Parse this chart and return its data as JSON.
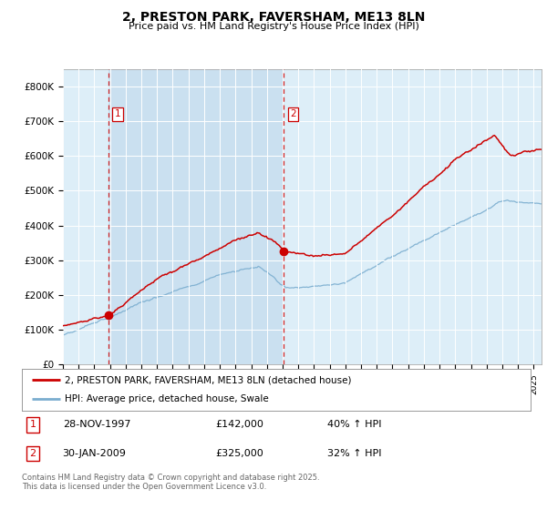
{
  "title": "2, PRESTON PARK, FAVERSHAM, ME13 8LN",
  "subtitle": "Price paid vs. HM Land Registry's House Price Index (HPI)",
  "ylim": [
    0,
    850000
  ],
  "yticks": [
    0,
    100000,
    200000,
    300000,
    400000,
    500000,
    600000,
    700000,
    800000
  ],
  "ytick_labels": [
    "£0",
    "£100K",
    "£200K",
    "£300K",
    "£400K",
    "£500K",
    "£600K",
    "£700K",
    "£800K"
  ],
  "sale1_x": 1997.91,
  "sale1_y": 142000,
  "sale1_label": "1",
  "sale1_date": "28-NOV-1997",
  "sale1_price": "£142,000",
  "sale1_hpi": "40% ↑ HPI",
  "sale2_x": 2009.08,
  "sale2_y": 325000,
  "sale2_label": "2",
  "sale2_date": "30-JAN-2009",
  "sale2_price": "£325,000",
  "sale2_hpi": "32% ↑ HPI",
  "line1_color": "#cc0000",
  "line2_color": "#7aadcf",
  "vline_color": "#cc0000",
  "marker_color": "#cc0000",
  "chart_bg": "#ddeeff",
  "shade_color": "#cce0f0",
  "legend1_label": "2, PRESTON PARK, FAVERSHAM, ME13 8LN (detached house)",
  "legend2_label": "HPI: Average price, detached house, Swale",
  "footer": "Contains HM Land Registry data © Crown copyright and database right 2025.\nThis data is licensed under the Open Government Licence v3.0.",
  "xlim_start": 1995.0,
  "xlim_end": 2025.5
}
